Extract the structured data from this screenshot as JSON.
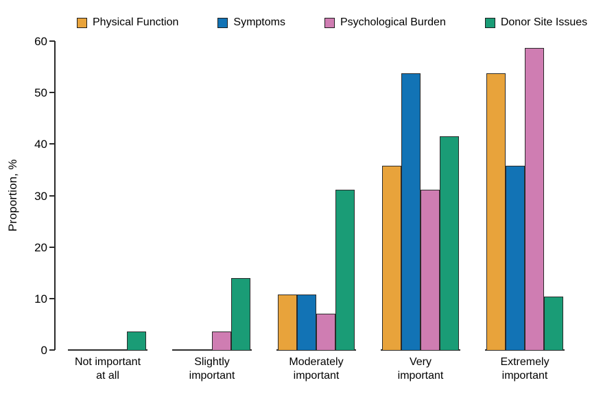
{
  "chart_data": {
    "type": "bar",
    "title": "",
    "ylabel": "Proportion, %",
    "ylim": [
      0,
      60
    ],
    "yticks": [
      0,
      10,
      20,
      30,
      40,
      50,
      60
    ],
    "grid": false,
    "legend_position": "top",
    "categories": [
      {
        "line1": "Not important",
        "line2": "at all"
      },
      {
        "line1": "Slightly",
        "line2": "important"
      },
      {
        "line1": "Moderately",
        "line2": "important"
      },
      {
        "line1": "Very",
        "line2": "important"
      },
      {
        "line1": "Extremely",
        "line2": "important"
      }
    ],
    "series": [
      {
        "name": "Physical Function",
        "color": "#E8A33B",
        "values": [
          0,
          0,
          10.7,
          35.7,
          53.6
        ]
      },
      {
        "name": "Symptoms",
        "color": "#1273B5",
        "values": [
          0,
          0,
          10.7,
          53.6,
          35.7
        ]
      },
      {
        "name": "Psychological Burden",
        "color": "#CF7DB2",
        "values": [
          0,
          3.4,
          6.9,
          31.0,
          58.6
        ]
      },
      {
        "name": "Donor Site Issues",
        "color": "#1A9C76",
        "values": [
          3.4,
          13.8,
          31.0,
          41.4,
          10.3
        ]
      }
    ],
    "colors": {
      "axis": "#2a2a2a",
      "background": "#ffffff",
      "text": "#000000"
    }
  }
}
